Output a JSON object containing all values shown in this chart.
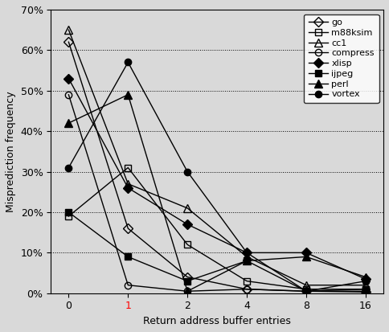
{
  "x_positions": [
    0,
    1,
    2,
    3,
    4,
    5
  ],
  "x_labels": [
    "0",
    "1",
    "2",
    "4",
    "8",
    "16"
  ],
  "series": {
    "go": [
      0.62,
      0.16,
      0.04,
      0.01,
      0.005,
      0.003
    ],
    "m88ksim": [
      0.19,
      0.31,
      0.12,
      0.03,
      0.01,
      0.01
    ],
    "cc1": [
      0.65,
      0.27,
      0.21,
      0.09,
      0.02,
      0.02
    ],
    "compress": [
      0.49,
      0.02,
      0.005,
      0.01,
      0.005,
      0.005
    ],
    "xlisp": [
      0.53,
      0.26,
      0.17,
      0.1,
      0.1,
      0.035
    ],
    "ijpeg": [
      0.2,
      0.09,
      0.03,
      0.08,
      0.005,
      0.01
    ],
    "perl": [
      0.42,
      0.49,
      0.005,
      0.08,
      0.09,
      0.04
    ],
    "vortex": [
      0.31,
      0.57,
      0.3,
      0.1,
      0.005,
      0.03
    ]
  },
  "xlabel": "Return address buffer entries",
  "ylabel": "Misprediction frequency",
  "ylim": [
    0.0,
    0.7
  ],
  "yticks": [
    0.0,
    0.1,
    0.2,
    0.3,
    0.4,
    0.5,
    0.6,
    0.7
  ],
  "background_color": "#d9d9d9",
  "legend_fontsize": 8,
  "axis_label_fontsize": 9,
  "tick_fontsize": 9,
  "marker_styles": {
    "go": {
      "marker": "D",
      "filled": false
    },
    "m88ksim": {
      "marker": "s",
      "filled": false
    },
    "cc1": {
      "marker": "^",
      "filled": false
    },
    "compress": {
      "marker": "o",
      "filled": false
    },
    "xlisp": {
      "marker": "D",
      "filled": true
    },
    "ijpeg": {
      "marker": "s",
      "filled": true
    },
    "perl": {
      "marker": "^",
      "filled": true
    },
    "vortex": {
      "marker": "o",
      "filled": true
    }
  }
}
